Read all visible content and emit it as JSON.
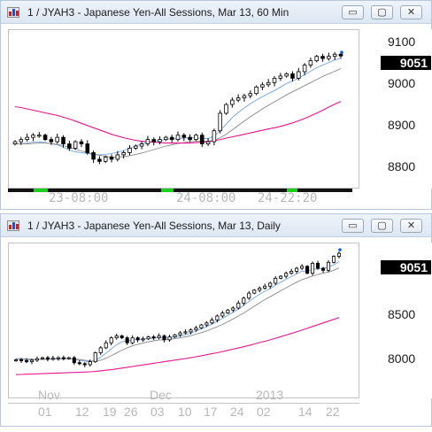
{
  "colors": {
    "bull_candle": "#ffffff",
    "bear_candle": "#000000",
    "ma_short": "#6fa6e8",
    "ma_mid": "#888888",
    "ma_long": "#e8168c",
    "price_badge_bg": "#000000",
    "session_on": "#22cc22",
    "session_off": "#111111"
  },
  "window_controls": {
    "minimize": "▭",
    "maximize": "▢",
    "close": "✕"
  },
  "windows": [
    {
      "title": "1 / JYAH3 - Japanese Yen-All Sessions, Mar 13, 60 Min",
      "last_price": "9051",
      "y_ticks": [
        "9100",
        "9000",
        "8900",
        "8800"
      ],
      "x_labels": [
        "23-08:00",
        "24-08:00",
        "24-22:20"
      ],
      "chart_data": {
        "type": "candlestick",
        "symbol": "JYAH3",
        "interval": "60 Min",
        "ylim": [
          8750,
          9110
        ],
        "y_ticks": [
          9100,
          9000,
          8900,
          8800
        ],
        "x_labels": [
          "23-08:00",
          "24-08:00",
          "24-22:20"
        ],
        "close": [
          8855,
          8860,
          8865,
          8870,
          8870,
          8860,
          8855,
          8865,
          8850,
          8840,
          8855,
          8850,
          8830,
          8815,
          8810,
          8820,
          8815,
          8825,
          8830,
          8840,
          8845,
          8850,
          8860,
          8855,
          8860,
          8865,
          8860,
          8870,
          8865,
          8860,
          8870,
          8850,
          8855,
          8880,
          8920,
          8940,
          8950,
          8955,
          8960,
          8965,
          8980,
          8985,
          8990,
          9000,
          9005,
          9010,
          9000,
          9015,
          9030,
          9040,
          9050,
          9045,
          9050,
          9055,
          9051
        ],
        "series": [
          {
            "name": "",
            "values": [
              8850,
              8850,
              8852,
              8854,
              8855,
              8853,
              8850,
              8848,
              8842,
              8836,
              8832,
              8830,
              8828,
              8826,
              8825,
              8826,
              8828,
              8831,
              8835,
              8840,
              8845,
              8850,
              8853,
              8856,
              8858,
              8860,
              8862,
              8862,
              8863,
              8864,
              8864,
              8862,
              8862,
              8868,
              8880,
              8895,
              8910,
              8922,
              8932,
              8942,
              8950,
              8958,
              8965,
              8972,
              8980,
              8988,
              8994,
              9000,
              9008,
              9016,
              9024,
              9030,
              9036,
              9042,
              9045
            ]
          },
          {
            "name": "",
            "values": [
              8850,
              8850,
              8850,
              8851,
              8852,
              8852,
              8851,
              8849,
              8846,
              8842,
              8838,
              8834,
              8830,
              8827,
              8824,
              8822,
              8820,
              8820,
              8821,
              8823,
              8826,
              8829,
              8833,
              8837,
              8841,
              8845,
              8848,
              8851,
              8853,
              8855,
              8856,
              8856,
              8856,
              8858,
              8864,
              8872,
              8882,
              8892,
              8902,
              8912,
              8921,
              8930,
              8938,
              8946,
              8954,
              8962,
              8969,
              8976,
              8983,
              8990,
              8997,
              9004,
              9010,
              9016,
              9022
            ]
          },
          {
            "name": "",
            "values": [
              8935,
              8933,
              8930,
              8927,
              8924,
              8921,
              8918,
              8915,
              8911,
              8907,
              8902,
              8897,
              8892,
              8887,
              8882,
              8877,
              8872,
              8868,
              8864,
              8861,
              8858,
              8856,
              8855,
              8854,
              8853,
              8852,
              8852,
              8852,
              8852,
              8852,
              8853,
              8854,
              8855,
              8857,
              8860,
              8863,
              8866,
              8869,
              8872,
              8875,
              8878,
              8881,
              8884,
              8887,
              8890,
              8894,
              8898,
              8903,
              8908,
              8914,
              8920,
              8927,
              8934,
              8941,
              8947
            ]
          }
        ]
      }
    },
    {
      "title": "1 / JYAH3 - Japanese Yen-All Sessions, Mar 13, Daily",
      "last_price": "9051",
      "y_ticks": [
        "8500",
        "8000"
      ],
      "month_labels": [
        "Nov",
        "Dec",
        "2013"
      ],
      "day_labels": [
        "01",
        "12",
        "19",
        "26",
        "03",
        "10",
        "17",
        "24",
        "02",
        "14",
        "22"
      ],
      "chart_data": {
        "type": "candlestick",
        "symbol": "JYAH3",
        "interval": "Daily",
        "ylim": [
          7600,
          9150
        ],
        "y_ticks": [
          8500,
          8000
        ],
        "x_labels": [
          "Nov",
          "Dec",
          "2013"
        ],
        "close": [
          7980,
          7970,
          7960,
          7975,
          7990,
          8000,
          7985,
          7995,
          8000,
          7990,
          8000,
          7950,
          7940,
          7930,
          7960,
          8050,
          8100,
          8150,
          8200,
          8220,
          8200,
          8150,
          8200,
          8180,
          8190,
          8210,
          8200,
          8220,
          8180,
          8210,
          8230,
          8250,
          8260,
          8280,
          8300,
          8330,
          8350,
          8380,
          8420,
          8450,
          8480,
          8500,
          8550,
          8600,
          8650,
          8680,
          8700,
          8720,
          8750,
          8800,
          8820,
          8850,
          8870,
          8900,
          8920,
          8850,
          8950,
          8900,
          8880,
          8960,
          9020,
          9051
        ],
        "series": [
          {
            "name": "",
            "values": [
              7990,
              7985,
              7980,
              7978,
              7980,
              7985,
              7988,
              7990,
              7993,
              7993,
              7995,
              7985,
              7975,
              7965,
              7960,
              7975,
              8005,
              8045,
              8090,
              8130,
              8160,
              8170,
              8180,
              8185,
              8188,
              8192,
              8196,
              8202,
              8200,
              8202,
              8208,
              8218,
              8232,
              8248,
              8266,
              8290,
              8314,
              8338,
              8366,
              8396,
              8426,
              8456,
              8490,
              8526,
              8566,
              8604,
              8638,
              8668,
              8696,
              8730,
              8760,
              8790,
              8816,
              8846,
              8870,
              8874,
              8888,
              8896,
              8900,
              8910,
              8934,
              8968
            ]
          },
          {
            "name": "",
            "values": [
              7990,
              7990,
              7988,
              7985,
              7984,
              7984,
              7985,
              7986,
              7988,
              7990,
              7991,
              7988,
              7982,
              7975,
              7968,
              7966,
              7975,
              7995,
              8020,
              8048,
              8076,
              8100,
              8120,
              8135,
              8148,
              8160,
              8170,
              8178,
              8182,
              8186,
              8192,
              8200,
              8210,
              8222,
              8236,
              8252,
              8270,
              8290,
              8312,
              8336,
              8362,
              8390,
              8420,
              8450,
              8484,
              8518,
              8552,
              8584,
              8614,
              8644,
              8674,
              8704,
              8732,
              8760,
              8786,
              8804,
              8822,
              8838,
              8850,
              8862,
              8880,
              8904
            ]
          },
          {
            "name": "",
            "values": [
              7830,
              7832,
              7834,
              7836,
              7838,
              7840,
              7842,
              7844,
              7846,
              7848,
              7850,
              7852,
              7854,
              7856,
              7858,
              7862,
              7868,
              7874,
              7880,
              7888,
              7896,
              7904,
              7912,
              7920,
              7928,
              7936,
              7944,
              7952,
              7960,
              7968,
              7976,
              7984,
              7992,
              8000,
              8010,
              8020,
              8030,
              8040,
              8050,
              8062,
              8074,
              8086,
              8098,
              8110,
              8124,
              8138,
              8152,
              8166,
              8180,
              8196,
              8212,
              8228,
              8244,
              8260,
              8278,
              8296,
              8314,
              8332,
              8350,
              8368,
              8386,
              8404
            ]
          }
        ]
      }
    }
  ]
}
